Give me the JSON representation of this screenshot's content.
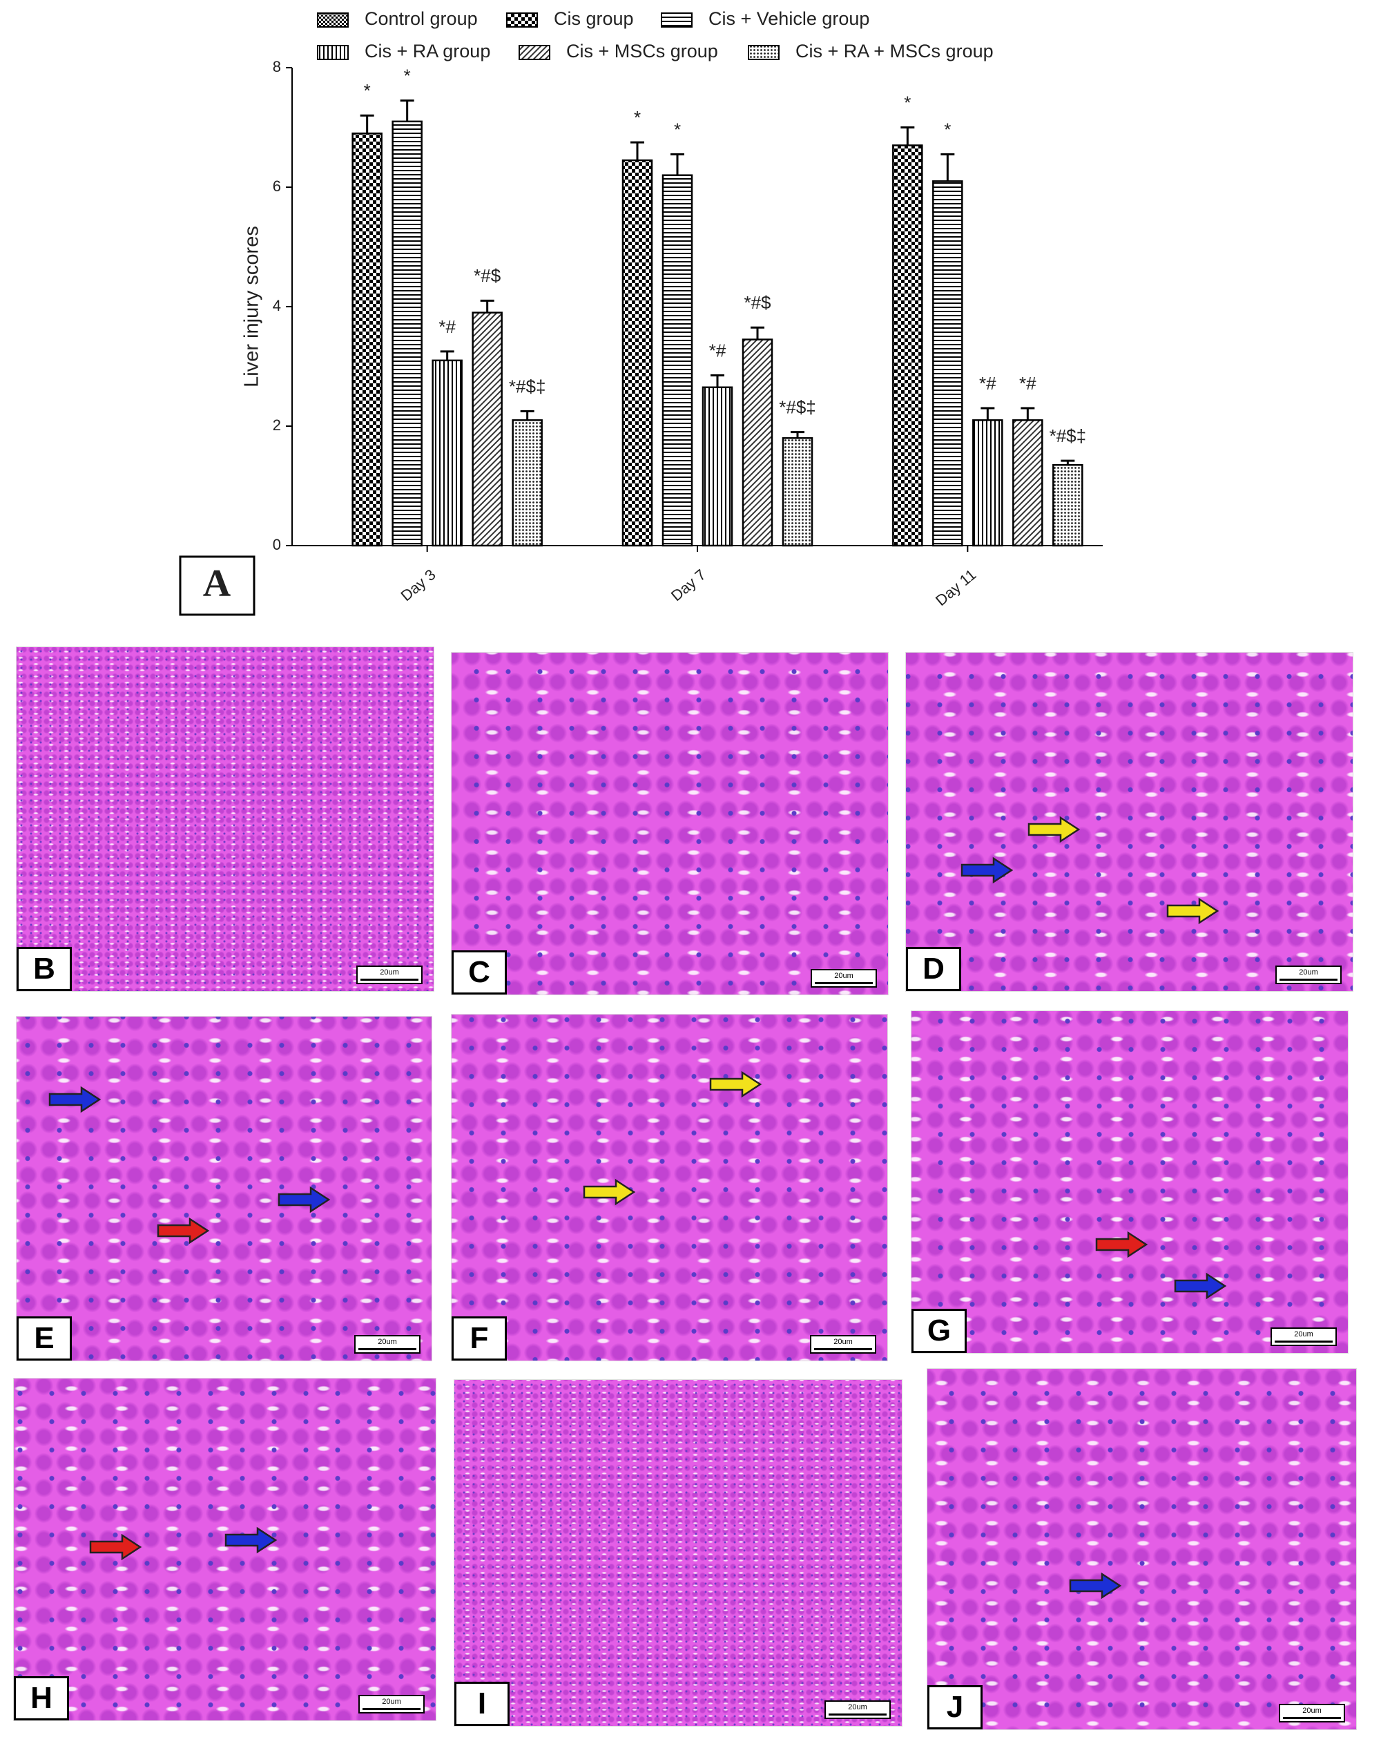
{
  "chart_data": {
    "type": "bar",
    "panel_label": "A",
    "ylabel": "Liver injury scores",
    "categories": [
      "Day 3",
      "Day 7",
      "Day 11"
    ],
    "ylim": [
      0,
      8
    ],
    "yticks": [
      0,
      2,
      4,
      6,
      8
    ],
    "grid": false,
    "series": [
      {
        "name": "Control group",
        "color": "#000000",
        "pattern": "fine-checker",
        "values": [
          0,
          0,
          0
        ],
        "errors": [
          0,
          0,
          0
        ],
        "annotations": [
          null,
          null,
          null
        ]
      },
      {
        "name": "Cis group",
        "color": "#000000",
        "pattern": "checker",
        "values": [
          6.9,
          6.45,
          6.7
        ],
        "errors": [
          0.3,
          0.3,
          0.3
        ],
        "annotations": [
          "*",
          "*",
          "*"
        ]
      },
      {
        "name": "Cis + Vehicle group",
        "color": "#000000",
        "pattern": "horizontal",
        "values": [
          7.1,
          6.2,
          6.1
        ],
        "errors": [
          0.35,
          0.35,
          0.45
        ],
        "annotations": [
          "*",
          "*",
          "*"
        ]
      },
      {
        "name": "Cis + RA group",
        "color": "#000000",
        "pattern": "vertical",
        "values": [
          3.1,
          2.65,
          2.1
        ],
        "errors": [
          0.15,
          0.2,
          0.2
        ],
        "annotations": [
          "*#",
          "*#",
          "*#"
        ]
      },
      {
        "name": "Cis + MSCs group",
        "color": "#000000",
        "pattern": "diagonal",
        "values": [
          3.9,
          3.45,
          2.1
        ],
        "errors": [
          0.2,
          0.2,
          0.2
        ],
        "annotations": [
          "*#$",
          "*#$",
          "*#"
        ]
      },
      {
        "name": "Cis + RA + MSCs group",
        "color": "#000000",
        "pattern": "dots",
        "values": [
          2.1,
          1.8,
          1.35
        ],
        "errors": [
          0.15,
          0.1,
          0.07
        ],
        "annotations": [
          "*#$‡",
          "*#$‡",
          "*#$‡"
        ]
      }
    ]
  },
  "panels": [
    {
      "label": "B",
      "scale_bar": "20um"
    },
    {
      "label": "C",
      "scale_bar": "20um"
    },
    {
      "label": "D",
      "scale_bar": "20um"
    },
    {
      "label": "E",
      "scale_bar": "20um"
    },
    {
      "label": "F",
      "scale_bar": "20um"
    },
    {
      "label": "G",
      "scale_bar": "20um"
    },
    {
      "label": "H",
      "scale_bar": "20um"
    },
    {
      "label": "I",
      "scale_bar": "20um"
    },
    {
      "label": "J",
      "scale_bar": "20um"
    }
  ]
}
